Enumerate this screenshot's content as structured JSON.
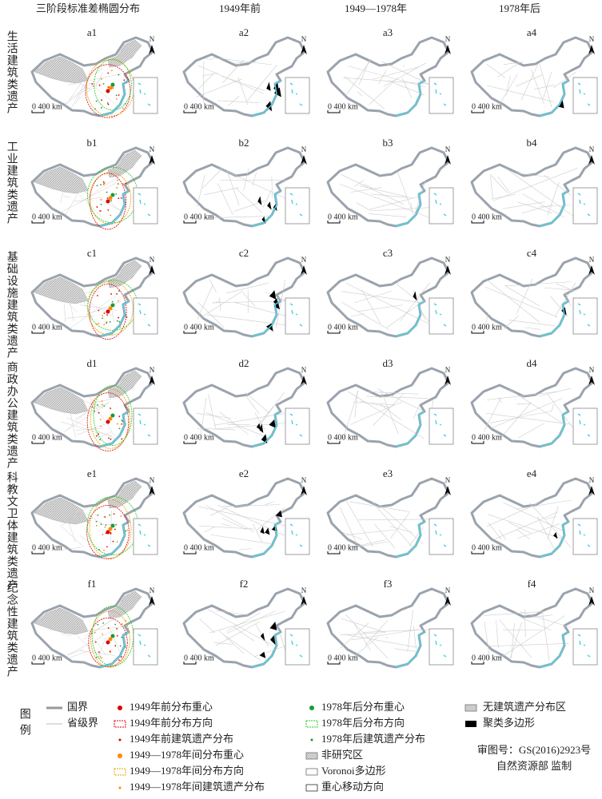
{
  "header": {
    "columns": [
      "三阶段标准差椭圆分布",
      "1949年前",
      "1949—1978年",
      "1978年后"
    ]
  },
  "rows": [
    {
      "label": "生活建筑类遗产",
      "panels": [
        "a1",
        "a2",
        "a3",
        "a4"
      ]
    },
    {
      "label": "工业建筑类遗产",
      "panels": [
        "b1",
        "b2",
        "b3",
        "b4"
      ]
    },
    {
      "label": "基础设施建筑类遗产",
      "panels": [
        "c1",
        "c2",
        "c3",
        "c4"
      ]
    },
    {
      "label": "商政办公建筑类遗产",
      "panels": [
        "d1",
        "d2",
        "d3",
        "d4"
      ]
    },
    {
      "label": "科教文卫体建筑类遗产",
      "panels": [
        "e1",
        "e2",
        "e3",
        "e4"
      ]
    },
    {
      "label": "纪念性建筑类遗产",
      "panels": [
        "f1",
        "f2",
        "f3",
        "f4"
      ]
    }
  ],
  "map_labels": {
    "north": "N",
    "scale": "0 400 km"
  },
  "legend": {
    "title": "图例",
    "col1": [
      "国界",
      "省级界"
    ],
    "col2": [
      "1949年前分布重心",
      "1949年前分布方向",
      "1949年前建筑遗产分布",
      "1949—1978年间分布重心",
      "1949—1978年间分布方向",
      "1949—1978年间建筑遗产分布"
    ],
    "col3": [
      "1978年后分布重心",
      "1978年后分布方向",
      "1978年后建筑遗产分布",
      "非研究区",
      "Voronoi多边形",
      "重心移动方向"
    ],
    "col4": [
      "无建筑遗产分布区",
      "聚类多边形"
    ],
    "approval": [
      "审图号：GS(2016)2923号",
      "自然资源部 监制"
    ]
  }
}
